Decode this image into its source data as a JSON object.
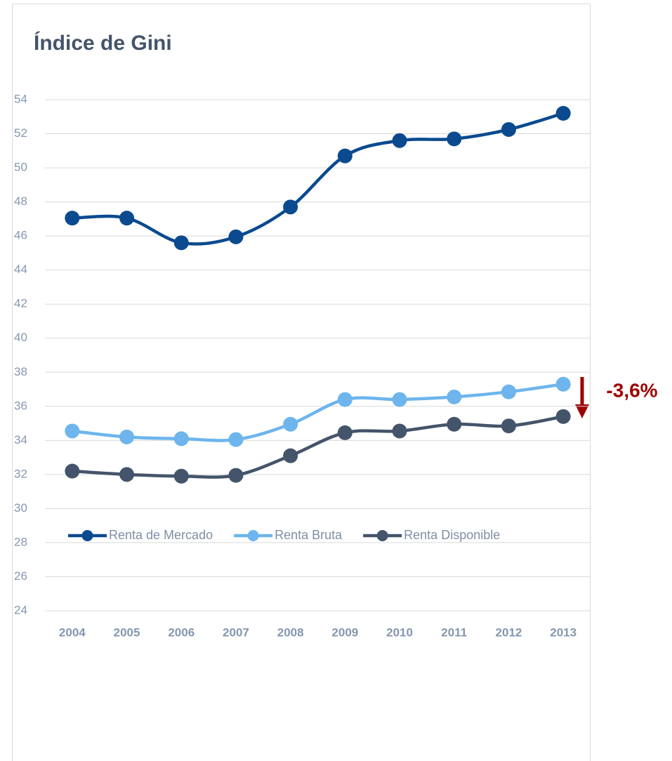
{
  "chart_data": {
    "type": "line",
    "title": "Índice de Gini",
    "categories": [
      "2004",
      "2005",
      "2006",
      "2007",
      "2008",
      "2009",
      "2010",
      "2011",
      "2012",
      "2013"
    ],
    "series": [
      {
        "name": "Renta de Mercado",
        "color": "#0b4a8f",
        "values": [
          47.05,
          47.05,
          45.6,
          45.95,
          47.7,
          50.7,
          51.6,
          51.7,
          52.25,
          53.2
        ]
      },
      {
        "name": "Renta Bruta",
        "color": "#6db5ec",
        "values": [
          34.55,
          34.2,
          34.1,
          34.05,
          34.95,
          36.4,
          36.4,
          36.55,
          36.85,
          37.3
        ]
      },
      {
        "name": "Renta Disponible",
        "color": "#44546a",
        "values": [
          32.2,
          32.0,
          31.9,
          31.95,
          33.1,
          34.45,
          34.55,
          34.95,
          34.85,
          35.4
        ]
      }
    ],
    "ylim": [
      24,
      54
    ],
    "yticks": [
      24,
      26,
      28,
      30,
      32,
      34,
      36,
      38,
      40,
      42,
      44,
      46,
      48,
      50,
      52,
      54
    ],
    "grid": true,
    "legend": "bottom",
    "smooth": true,
    "annotation": {
      "text": "-3,6%",
      "color": "#9c0000"
    }
  }
}
